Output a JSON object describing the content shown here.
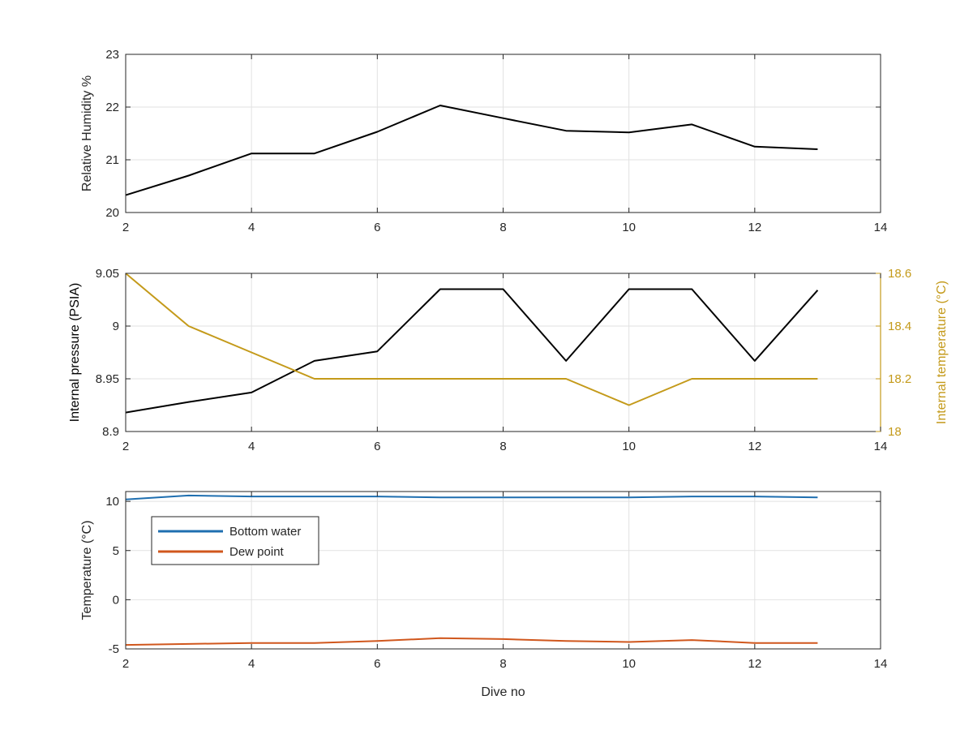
{
  "chart_data": [
    {
      "type": "line",
      "title": "",
      "xlabel": "",
      "ylabel": "Relative Humidity %",
      "xlim": [
        2,
        14
      ],
      "ylim": [
        20,
        23
      ],
      "xticks": [
        "2",
        "4",
        "6",
        "8",
        "10",
        "12",
        "14"
      ],
      "yticks": [
        "20",
        "21",
        "22",
        "23"
      ],
      "grid": true,
      "series": [
        {
          "color": "#000000",
          "axis": "left",
          "x": [
            2,
            3,
            4,
            5,
            6,
            7,
            8,
            9,
            10,
            11,
            12,
            13
          ],
          "y": [
            20.33,
            20.7,
            21.12,
            21.12,
            21.53,
            22.03,
            21.79,
            21.55,
            21.52,
            21.67,
            21.25,
            21.2
          ]
        }
      ]
    },
    {
      "type": "line",
      "title": "",
      "xlabel": "",
      "ylabel": "Internal pressure (PSIA)",
      "ylabel_right": "Internal temperature (°C)",
      "xlim": [
        2,
        14
      ],
      "ylim": [
        8.9,
        9.05
      ],
      "ylim_right": [
        18,
        18.6
      ],
      "xticks": [
        "2",
        "4",
        "6",
        "8",
        "10",
        "12",
        "14"
      ],
      "yticks": [
        "8.9",
        "8.95",
        "9",
        "9.05"
      ],
      "yticks_right": [
        "18",
        "18.2",
        "18.4",
        "18.6"
      ],
      "right_axis_color": "#c49a1a",
      "grid": true,
      "series": [
        {
          "color": "#000000",
          "axis": "left",
          "x": [
            2,
            3,
            4,
            5,
            6,
            7,
            8,
            9,
            10,
            11,
            12,
            13
          ],
          "y": [
            8.918,
            8.928,
            8.937,
            8.967,
            8.976,
            9.035,
            9.035,
            8.967,
            9.035,
            9.035,
            8.967,
            9.034
          ]
        },
        {
          "color": "#c49a1a",
          "axis": "right",
          "x": [
            2,
            3,
            4,
            5,
            6,
            7,
            8,
            9,
            10,
            11,
            12,
            13
          ],
          "y": [
            18.6,
            18.4,
            18.3,
            18.2,
            18.2,
            18.2,
            18.2,
            18.2,
            18.1,
            18.2,
            18.2,
            18.2
          ]
        }
      ]
    },
    {
      "type": "line",
      "title": "",
      "xlabel": "Dive no",
      "ylabel": "Temperature (°C)",
      "xlim": [
        2,
        14
      ],
      "ylim": [
        -5,
        11
      ],
      "xticks": [
        "2",
        "4",
        "6",
        "8",
        "10",
        "12",
        "14"
      ],
      "yticks": [
        "-5",
        "0",
        "5",
        "10"
      ],
      "grid": true,
      "legend": "top-left",
      "series": [
        {
          "name": "Bottom water",
          "color": "#1f6fb0",
          "axis": "left",
          "x": [
            2,
            3,
            4,
            5,
            6,
            7,
            8,
            9,
            10,
            11,
            12,
            13
          ],
          "y": [
            10.2,
            10.6,
            10.5,
            10.5,
            10.5,
            10.4,
            10.4,
            10.4,
            10.4,
            10.5,
            10.5,
            10.4
          ]
        },
        {
          "name": "Dew point",
          "color": "#d0571d",
          "axis": "left",
          "x": [
            2,
            3,
            4,
            5,
            6,
            7,
            8,
            9,
            10,
            11,
            12,
            13
          ],
          "y": [
            -4.6,
            -4.5,
            -4.4,
            -4.4,
            -4.2,
            -3.9,
            -4.0,
            -4.2,
            -4.3,
            -4.1,
            -4.4,
            -4.4
          ]
        }
      ]
    }
  ]
}
